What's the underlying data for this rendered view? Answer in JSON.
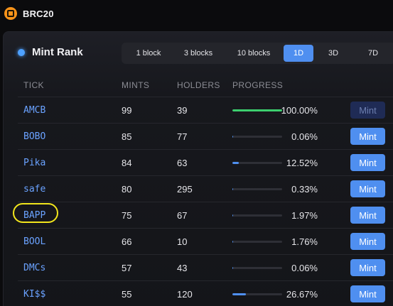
{
  "app": {
    "title": "BRC20",
    "brand_color": "#f7931a"
  },
  "panel": {
    "title": "Mint Rank"
  },
  "tabs": [
    {
      "label": "1 block",
      "active": false
    },
    {
      "label": "3 blocks",
      "active": false
    },
    {
      "label": "10 blocks",
      "active": false
    },
    {
      "label": "1D",
      "active": true
    },
    {
      "label": "3D",
      "active": false
    },
    {
      "label": "7D",
      "active": false
    }
  ],
  "columns": {
    "tick": "TICK",
    "mints": "MINTS",
    "holders": "HOLDERS",
    "progress": "PROGRESS"
  },
  "rows": [
    {
      "tick": "AMCB",
      "mints": "99",
      "holders": "39",
      "progress": "100.00%",
      "progress_value": 1.0,
      "mint_label": "Mint",
      "mint_enabled": false
    },
    {
      "tick": "BOBO",
      "mints": "85",
      "holders": "77",
      "progress": "0.06%",
      "progress_value": 0.0006,
      "mint_label": "Mint",
      "mint_enabled": true
    },
    {
      "tick": "Pika",
      "mints": "84",
      "holders": "63",
      "progress": "12.52%",
      "progress_value": 0.1252,
      "mint_label": "Mint",
      "mint_enabled": true
    },
    {
      "tick": "safe",
      "mints": "80",
      "holders": "295",
      "progress": "0.33%",
      "progress_value": 0.0033,
      "mint_label": "Mint",
      "mint_enabled": true
    },
    {
      "tick": "BAPP",
      "mints": "75",
      "holders": "67",
      "progress": "1.97%",
      "progress_value": 0.0197,
      "mint_label": "Mint",
      "mint_enabled": true
    },
    {
      "tick": "BOOL",
      "mints": "66",
      "holders": "10",
      "progress": "1.76%",
      "progress_value": 0.0176,
      "mint_label": "Mint",
      "mint_enabled": true
    },
    {
      "tick": "DMCs",
      "mints": "57",
      "holders": "43",
      "progress": "0.06%",
      "progress_value": 0.0006,
      "mint_label": "Mint",
      "mint_enabled": true
    },
    {
      "tick": "KI$$",
      "mints": "55",
      "holders": "120",
      "progress": "26.67%",
      "progress_value": 0.2667,
      "mint_label": "Mint",
      "mint_enabled": true
    }
  ]
}
